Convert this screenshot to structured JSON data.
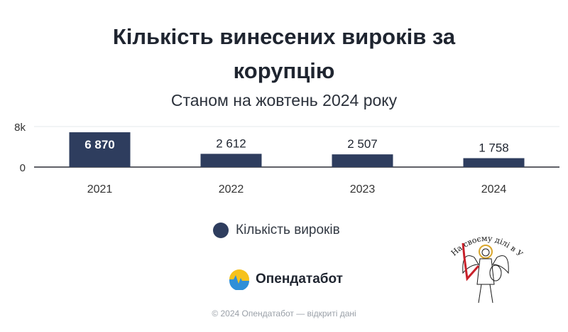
{
  "title_line1": "Кількість винесених вироків за",
  "title_line2": "корупцію",
  "subtitle": "Станом на жовтень 2024 року",
  "legend_label": "Кількість вироків",
  "brand_name": "Опендатабот",
  "footer": "© 2024 Опендатабот — відкриті дані",
  "emblem_text": "На своєму ділі в Україні",
  "colors": {
    "bar": "#2e3d5e",
    "brand_yellow": "#f6c21c",
    "brand_blue": "#2f8fd8",
    "emblem_red": "#c8202a"
  },
  "chart_data": {
    "type": "bar",
    "categories": [
      "2021",
      "2022",
      "2023",
      "2024"
    ],
    "values": [
      6870,
      2612,
      2507,
      1758
    ],
    "value_labels": [
      "6 870",
      "2 612",
      "2 507",
      "1 758"
    ],
    "y_ticks": [
      {
        "value": 0,
        "label": "0"
      },
      {
        "value": 8000,
        "label": "8k"
      }
    ],
    "ylim": [
      0,
      8000
    ],
    "legend_position": "bottom",
    "grid": false
  }
}
